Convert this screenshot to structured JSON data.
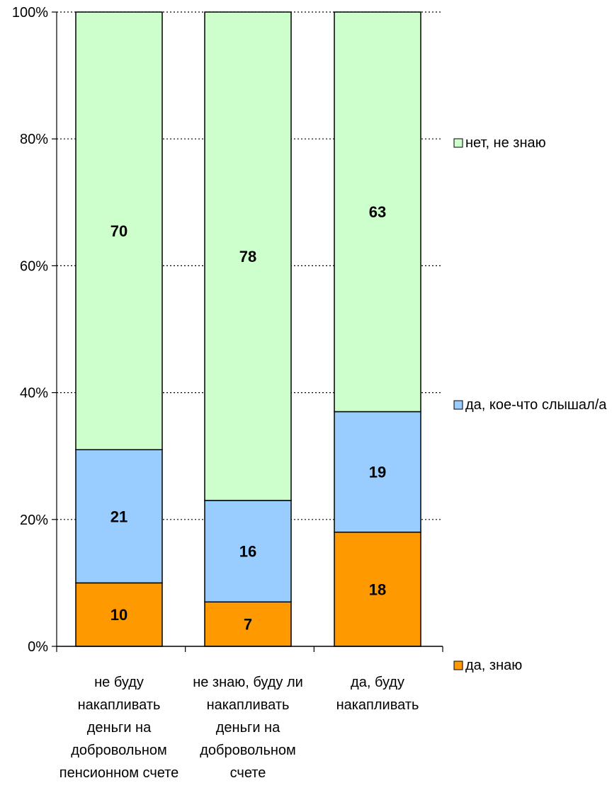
{
  "chart_data": {
    "type": "bar",
    "stacked": "percent",
    "categories": [
      [
        "не буду",
        "накапливать",
        "деньги на",
        "добровольном",
        "пенсионном счете"
      ],
      [
        "не знаю, буду ли",
        "накапливать",
        "деньги на",
        "добровольном",
        "счете"
      ],
      [
        "да, буду",
        "накапливать"
      ]
    ],
    "series": [
      {
        "name": "да, знаю",
        "color": "#FF9900",
        "values": [
          10,
          7,
          18
        ]
      },
      {
        "name": "да, кое-что слышал/а",
        "color": "#99CCFF",
        "values": [
          21,
          16,
          19
        ]
      },
      {
        "name": "нет, не знаю",
        "color": "#CCFFCC",
        "values": [
          70,
          78,
          63
        ]
      }
    ],
    "y_ticks": [
      "0%",
      "20%",
      "40%",
      "60%",
      "80%",
      "100%"
    ],
    "ylim": [
      0,
      100
    ],
    "grid": "dotted horizontal",
    "legend_position": "right",
    "legend_order": [
      "нет, не знаю",
      "да, кое-что слышал/а",
      "да, знаю"
    ]
  }
}
